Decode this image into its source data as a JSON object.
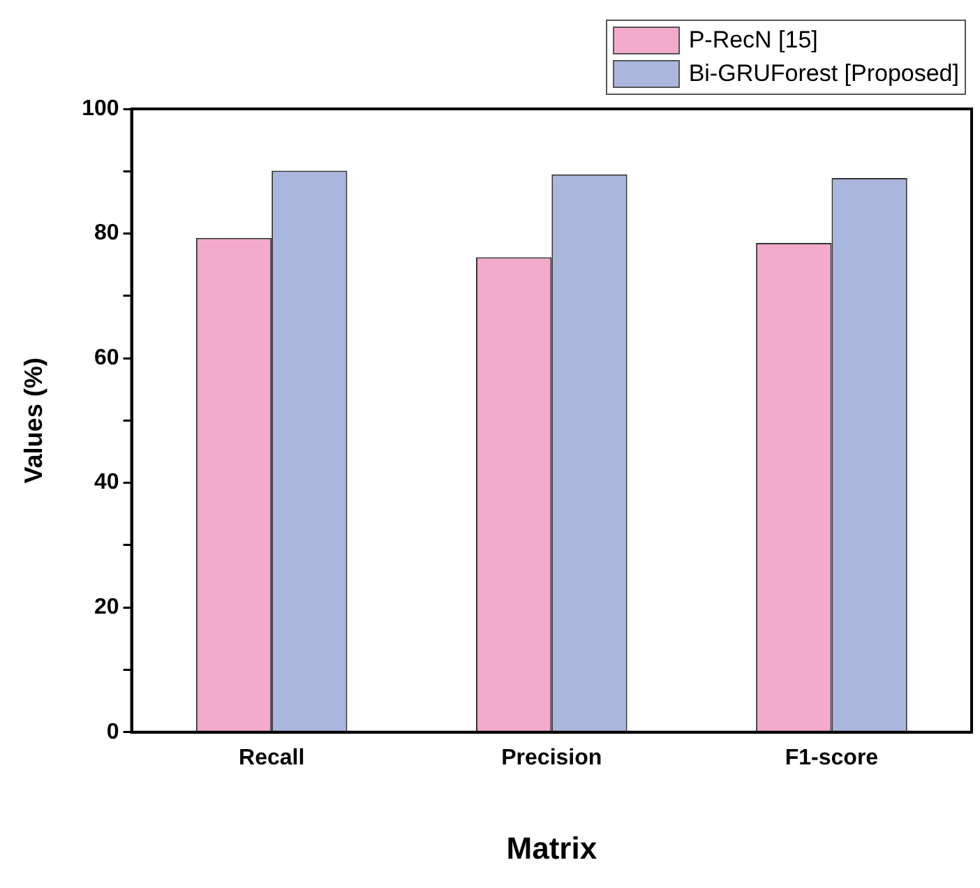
{
  "chart_data": {
    "type": "bar",
    "xlabel": "Matrix",
    "ylabel": "Values (%)",
    "categories": [
      "Recall",
      "Precision",
      "F1-score"
    ],
    "series": [
      {
        "name": "P-RecN [15]",
        "color": "#f4aacd",
        "values": [
          79.3,
          76.2,
          78.5
        ]
      },
      {
        "name": "Bi-GRUForest [Proposed]",
        "color": "#abb6dc",
        "values": [
          90.1,
          89.5,
          88.9
        ]
      }
    ],
    "ylim": [
      0,
      100
    ],
    "yticks": [
      0,
      {
        "value": 10,
        "label": null
      },
      20,
      {
        "value": 30,
        "label": null
      },
      40,
      {
        "value": 50,
        "label": null
      },
      60,
      {
        "value": 70,
        "label": null
      },
      80,
      {
        "value": 90,
        "label": null
      },
      100
    ],
    "grid": false,
    "legend": "top right"
  }
}
